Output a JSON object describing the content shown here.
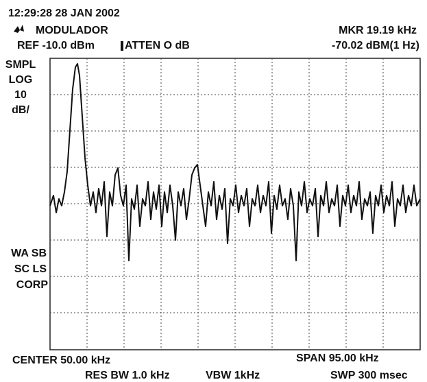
{
  "header": {
    "timestamp": "12:29:28  28 JAN 2002",
    "title": "MODULADOR",
    "ref": "REF -10.0 dBm",
    "atten": "ATTEN O dB",
    "marker_freq": "MKR 19.19 kHz",
    "marker_level": "-70.02 dBM(1 Hz)"
  },
  "side_labels": {
    "top": [
      "SMPL",
      "LOG",
      "10",
      "dB/"
    ],
    "bottom": [
      "WA SB",
      "SC LS",
      "CORP"
    ]
  },
  "footer": {
    "center": "CENTER 50.00 kHz",
    "span": "SPAN 95.00 kHz",
    "res_bw": "RES BW 1.0 kHz",
    "vbw": "VBW 1kHz",
    "swp": "SWP 300 msec"
  }
}
